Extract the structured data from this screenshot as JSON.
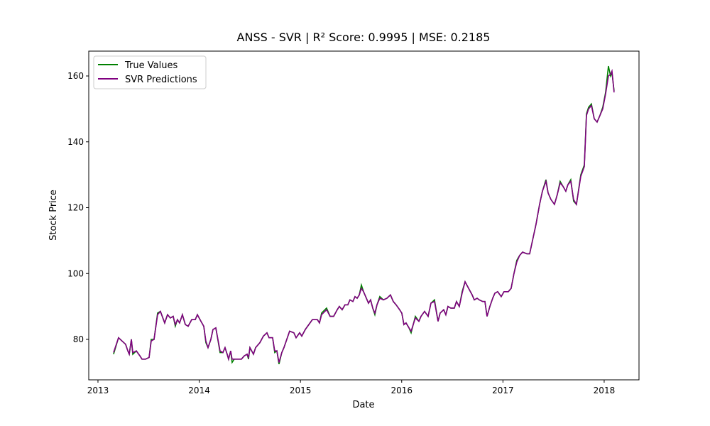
{
  "chart_data": {
    "type": "line",
    "title": "ANSS - SVR | R² Score: 0.9995 | MSE: 0.2185",
    "xlabel": "Date",
    "ylabel": "Stock Price",
    "x": [
      2013.154,
      2013.203,
      2013.238,
      2013.273,
      2013.295,
      2013.309,
      2013.33,
      2013.344,
      2013.379,
      2013.414,
      2013.435,
      2013.47,
      2013.505,
      2013.526,
      2013.554,
      2013.589,
      2013.617,
      2013.659,
      2013.687,
      2013.715,
      2013.743,
      2013.764,
      2013.785,
      2013.806,
      2013.834,
      2013.863,
      2013.891,
      2013.926,
      2013.961,
      2013.982,
      2014.017,
      2014.045,
      2014.066,
      2014.087,
      2014.115,
      2014.136,
      2014.164,
      2014.206,
      2014.234,
      2014.255,
      2014.276,
      2014.29,
      2014.311,
      2014.325,
      2014.346,
      2014.396,
      2014.417,
      2014.445,
      2014.473,
      2014.487,
      2014.501,
      2014.536,
      2014.557,
      2014.599,
      2014.634,
      2014.669,
      2014.69,
      2014.725,
      2014.746,
      2014.767,
      2014.788,
      2014.816,
      2014.837,
      2014.865,
      2014.893,
      2014.935,
      2014.957,
      2014.992,
      2015.013,
      2015.048,
      2015.083,
      2015.118,
      2015.167,
      2015.188,
      2015.209,
      2015.258,
      2015.293,
      2015.328,
      2015.363,
      2015.384,
      2015.412,
      2015.44,
      2015.468,
      2015.489,
      2015.518,
      2015.539,
      2015.56,
      2015.581,
      2015.602,
      2015.623,
      2015.644,
      2015.672,
      2015.693,
      2015.714,
      2015.735,
      2015.756,
      2015.784,
      2015.819,
      2015.854,
      2015.889,
      2015.917,
      2015.945,
      2015.98,
      2016.001,
      2016.022,
      2016.043,
      2016.072,
      2016.093,
      2016.114,
      2016.135,
      2016.17,
      2016.191,
      2016.226,
      2016.261,
      2016.289,
      2016.324,
      2016.359,
      2016.38,
      2016.415,
      2016.436,
      2016.457,
      2016.485,
      2016.52,
      2016.541,
      2016.569,
      2016.597,
      2016.626,
      2016.661,
      2016.696,
      2016.717,
      2016.745,
      2016.766,
      2016.801,
      2016.822,
      2016.843,
      2016.871,
      2016.899,
      2016.92,
      2016.948,
      2016.983,
      2017.011,
      2017.053,
      2017.081,
      2017.109,
      2017.137,
      2017.165,
      2017.194,
      2017.236,
      2017.264,
      2017.292,
      2017.327,
      2017.362,
      2017.39,
      2017.425,
      2017.446,
      2017.474,
      2017.509,
      2017.537,
      2017.565,
      2017.593,
      2017.621,
      2017.642,
      2017.67,
      2017.698,
      2017.726,
      2017.769,
      2017.804,
      2017.825,
      2017.846,
      2017.874,
      2017.902,
      2017.93,
      2017.958,
      2017.986,
      2018.014,
      2018.042,
      2018.063,
      2018.077,
      2018.098
    ],
    "series": [
      {
        "name": "True Values",
        "color": "#008000",
        "values": [
          75.5,
          80.5,
          79.5,
          78.5,
          76.5,
          75.5,
          80,
          75.5,
          76.5,
          75,
          74,
          74,
          74.5,
          80,
          80,
          88,
          88.5,
          85,
          87.5,
          86.5,
          87,
          84,
          86,
          85,
          87.5,
          84.5,
          84,
          86,
          86,
          87.5,
          85.5,
          84,
          79,
          77.5,
          80,
          83,
          83.5,
          76,
          76,
          77.5,
          75.5,
          74,
          76.5,
          73,
          74,
          74,
          74,
          75,
          75.5,
          74,
          77.5,
          75.5,
          77.5,
          79,
          81,
          82,
          80.5,
          80.5,
          76,
          76.5,
          72.5,
          76,
          77.5,
          80,
          82.5,
          82,
          80.5,
          82,
          81,
          83,
          84.5,
          86,
          86,
          85,
          88,
          89.5,
          87,
          87,
          89,
          90,
          89,
          90.5,
          90.5,
          92,
          91.5,
          93,
          92.5,
          93.5,
          96.5,
          94.5,
          93,
          91,
          92,
          89.5,
          87.5,
          90.5,
          93,
          92,
          92.5,
          93.5,
          91.5,
          90.5,
          89,
          88,
          84.5,
          85,
          83.5,
          82,
          84.5,
          87,
          85.5,
          87,
          88.5,
          87,
          91,
          92,
          85.5,
          88,
          89,
          87.5,
          90,
          89.5,
          89.5,
          91.5,
          90,
          94.5,
          97.5,
          95.5,
          93.5,
          92,
          92.5,
          92,
          91.5,
          91.5,
          87,
          90,
          92.5,
          94,
          94.5,
          93,
          94.5,
          94.5,
          95.5,
          100,
          104,
          105.5,
          106.5,
          106,
          106,
          110,
          115,
          121,
          125,
          128.5,
          124.5,
          122.5,
          121,
          124,
          128,
          126.5,
          125,
          127,
          128.5,
          122,
          121,
          130,
          133,
          148.5,
          150.5,
          151.5,
          147,
          146,
          148,
          150.5,
          155,
          163,
          160,
          161,
          155.5
        ]
      },
      {
        "name": "SVR Predictions",
        "color": "#800080",
        "values": [
          76,
          80.5,
          79.5,
          78.5,
          76.5,
          75.5,
          80,
          76,
          76.5,
          75,
          74,
          74,
          74.5,
          79.5,
          80,
          87.5,
          88.5,
          85,
          87.5,
          86.5,
          87,
          84.5,
          86,
          85,
          87.5,
          84.5,
          84,
          86,
          86,
          87.5,
          85.5,
          84,
          79.5,
          77.5,
          80,
          83,
          83.5,
          76.5,
          76,
          77.5,
          75.5,
          74,
          76.5,
          74,
          74,
          74,
          74,
          75,
          75.5,
          74.5,
          77.5,
          75.5,
          77.5,
          79,
          81,
          82,
          80.5,
          80.5,
          76.5,
          76.5,
          73,
          76,
          77.5,
          80,
          82.5,
          82,
          80.5,
          82,
          81,
          83,
          84.5,
          86,
          86,
          85,
          87.5,
          89,
          87,
          87,
          89,
          90,
          89,
          90.5,
          90.5,
          92,
          91.5,
          93,
          92.5,
          93.5,
          95.5,
          94.5,
          93,
          91,
          92,
          89.5,
          88,
          90.5,
          92.5,
          92,
          92.5,
          93.5,
          91.5,
          90.5,
          89,
          88,
          84.5,
          85,
          83.5,
          82.5,
          84.5,
          86.5,
          85.5,
          87,
          88.5,
          87,
          91,
          91.5,
          85.5,
          88,
          89,
          87.5,
          90,
          89.5,
          89.5,
          91.5,
          90,
          94,
          97.5,
          95.5,
          93.5,
          92,
          92.5,
          92,
          91.5,
          91.5,
          87,
          90,
          92.5,
          94,
          94.5,
          93,
          94.5,
          94.5,
          95.5,
          100,
          103.5,
          105.5,
          106.5,
          106,
          106,
          110,
          115,
          121,
          125,
          128,
          124.5,
          122.5,
          121,
          124,
          127.5,
          126.5,
          125,
          127,
          128,
          122.5,
          121,
          129.5,
          132.5,
          148,
          150,
          151,
          147,
          146,
          148,
          150,
          154.5,
          160,
          160.5,
          161.5,
          155
        ]
      }
    ],
    "xlim": [
      2012.909,
      2018.344
    ],
    "xticks": [
      2013,
      2014,
      2015,
      2016,
      2017,
      2018
    ],
    "ylim": [
      67.71,
      167.55
    ],
    "yticks": [
      80,
      100,
      120,
      140,
      160
    ],
    "legend": "upper left"
  }
}
